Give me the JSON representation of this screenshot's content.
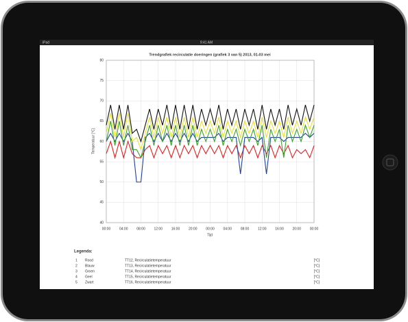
{
  "status_bar": {
    "device": "iPad",
    "time": "9:41 AM"
  },
  "chart_data": {
    "type": "line",
    "title": "Trendgrafiek recirculatie doeringen (grafiek 3 van 5) 2013, 01-03 mei",
    "y_label": "Temperatuur [°C]",
    "x_label": "Tijd",
    "x": [
      0,
      1,
      2,
      3,
      4,
      5,
      6,
      7,
      8,
      9,
      10,
      11,
      12,
      13,
      14,
      15,
      16,
      17,
      18,
      19,
      20,
      21,
      22,
      23,
      24,
      25,
      26,
      27,
      28,
      29,
      30,
      31,
      32,
      33,
      34,
      35,
      36,
      37,
      38,
      39,
      40,
      41,
      42,
      43,
      44,
      45,
      46,
      47,
      48
    ],
    "series": [
      {
        "name": "Rood",
        "color": "#e02020",
        "values": [
          57,
          60,
          56,
          60,
          56,
          60,
          57,
          56,
          56,
          58,
          59,
          56,
          59,
          57,
          59,
          56,
          59,
          56,
          59,
          57,
          59,
          56,
          59,
          57,
          59,
          57,
          59,
          56,
          59,
          57,
          59,
          56,
          59,
          57,
          59,
          56,
          59,
          57,
          59,
          56,
          59,
          57,
          59,
          56,
          58,
          57,
          58,
          56,
          59
        ]
      },
      {
        "name": "Blauw",
        "color": "#1f3fa0",
        "values": [
          60,
          62,
          60,
          62,
          60,
          62,
          60,
          50,
          50,
          61,
          62,
          60,
          62,
          60,
          62,
          60,
          62,
          60,
          62,
          60,
          62,
          60,
          61,
          61,
          61,
          61,
          62,
          60,
          61,
          61,
          61,
          52,
          61,
          61,
          61,
          60,
          61,
          52,
          61,
          61,
          61,
          60,
          61,
          61,
          61,
          61,
          62,
          61,
          62
        ]
      },
      {
        "name": "Groen",
        "color": "#3aa02a",
        "values": [
          60,
          65,
          59,
          65,
          59,
          64,
          58,
          58,
          56,
          60,
          64,
          59,
          64,
          60,
          64,
          59,
          64,
          59,
          64,
          59,
          64,
          59,
          63,
          60,
          63,
          60,
          64,
          59,
          63,
          60,
          63,
          59,
          63,
          60,
          63,
          59,
          64,
          56,
          63,
          60,
          63,
          56,
          64,
          60,
          63,
          60,
          64,
          61,
          64
        ]
      },
      {
        "name": "Geel",
        "color": "#e8e030",
        "values": [
          62,
          67,
          61,
          67,
          61,
          67,
          60,
          61,
          58,
          62,
          66,
          61,
          66,
          62,
          66,
          61,
          66,
          61,
          66,
          61,
          66,
          61,
          65,
          62,
          65,
          62,
          66,
          61,
          65,
          62,
          65,
          61,
          65,
          62,
          65,
          61,
          66,
          61,
          65,
          62,
          65,
          61,
          66,
          62,
          65,
          62,
          66,
          63,
          66
        ]
      },
      {
        "name": "Zwart",
        "color": "#111111",
        "values": [
          64,
          69,
          63,
          69,
          63,
          69,
          62,
          63,
          60,
          64,
          68,
          63,
          68,
          64,
          69,
          63,
          69,
          63,
          69,
          63,
          69,
          63,
          68,
          64,
          68,
          64,
          69,
          63,
          68,
          64,
          68,
          63,
          68,
          64,
          68,
          63,
          69,
          63,
          68,
          64,
          68,
          63,
          69,
          64,
          68,
          64,
          69,
          65,
          69
        ]
      }
    ],
    "xlim": [
      0,
      48
    ],
    "xticks": [
      {
        "value": 0,
        "label": "00:00"
      },
      {
        "value": 4,
        "label": "04:00"
      },
      {
        "value": 8,
        "label": "08:00"
      },
      {
        "value": 12,
        "label": "12:00"
      },
      {
        "value": 16,
        "label": "16:00"
      },
      {
        "value": 20,
        "label": "20:00"
      },
      {
        "value": 24,
        "label": "00:00"
      },
      {
        "value": 28,
        "label": "04:00"
      },
      {
        "value": 32,
        "label": "08:00"
      },
      {
        "value": 36,
        "label": "12:00"
      },
      {
        "value": 40,
        "label": "16:00"
      },
      {
        "value": 44,
        "label": "20:00"
      },
      {
        "value": 48,
        "label": "00:00"
      }
    ],
    "ylim": [
      40,
      80
    ],
    "yticks": [
      40,
      45,
      50,
      55,
      60,
      65,
      70,
      75,
      80
    ],
    "grid": true
  },
  "legend": {
    "title": "Legenda:",
    "rows": [
      [
        "1",
        "TT12, Recirculatietemperatuur",
        "[°C]"
      ],
      [
        "2",
        "TT13, Recirculatietemperatuur",
        "[°C]"
      ],
      [
        "3",
        "TT14, Recirculatietemperatuur",
        "[°C]"
      ],
      [
        "4",
        "TT15, Recirculatietemperatuur",
        "[°C]"
      ],
      [
        "5",
        "TT16, Recirculatietemperatuur",
        "[°C]"
      ]
    ]
  }
}
